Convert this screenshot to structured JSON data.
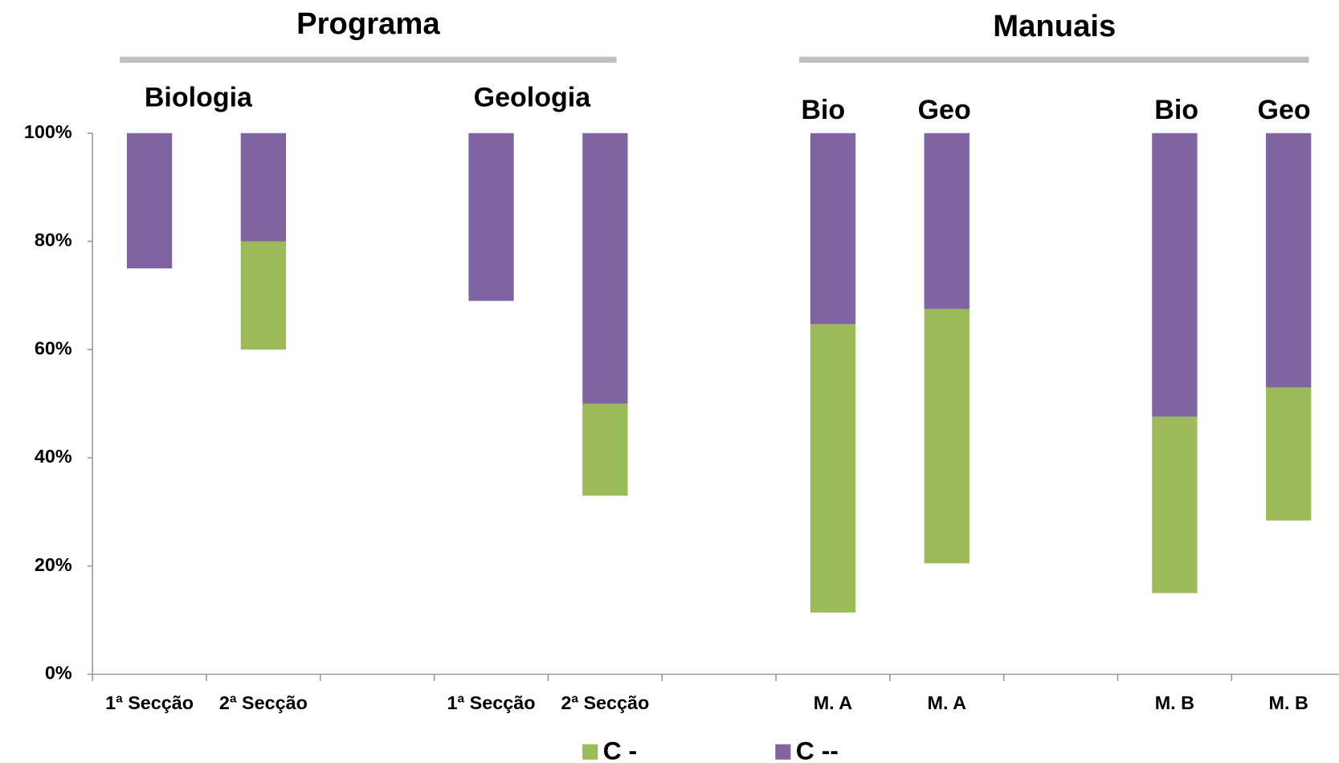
{
  "chart_data": {
    "type": "bar",
    "stacked": true,
    "categories": [
      "1ª Secção",
      "2ª Secção",
      null,
      "1ª Secção",
      "2ª Secção",
      null,
      "M. A",
      "M. A",
      null,
      "M. B",
      "M. B"
    ],
    "series": [
      {
        "color": "none",
        "values": [
          75,
          60,
          null,
          69,
          33,
          null,
          11.4,
          20.5,
          null,
          15,
          28.4
        ]
      },
      {
        "name": "C -",
        "color": "#9bbb59",
        "values": [
          0,
          20,
          null,
          0,
          17,
          null,
          53.3,
          47,
          null,
          32.6,
          24.6
        ]
      },
      {
        "name": "C --",
        "color": "#8064a2",
        "values": [
          25,
          20,
          null,
          31,
          50,
          null,
          35.3,
          32.5,
          null,
          52.4,
          47
        ]
      }
    ],
    "ylim": [
      0,
      100
    ],
    "yticks": [
      {
        "value": 0,
        "label": "0%"
      },
      {
        "value": 20,
        "label": "20%"
      },
      {
        "value": 40,
        "label": "40%"
      },
      {
        "value": 60,
        "label": "60%"
      },
      {
        "value": 80,
        "label": "80%"
      },
      {
        "value": 100,
        "label": "100%"
      }
    ],
    "annotations": [
      {
        "text": "Programa"
      },
      {
        "text": "Manuais"
      },
      {
        "text": "Biologia"
      },
      {
        "text": "Geologia"
      },
      {
        "text": "Bio"
      },
      {
        "text": "Geo"
      },
      {
        "text": "Bio"
      },
      {
        "text": "Geo"
      }
    ],
    "legend": "bottom"
  }
}
